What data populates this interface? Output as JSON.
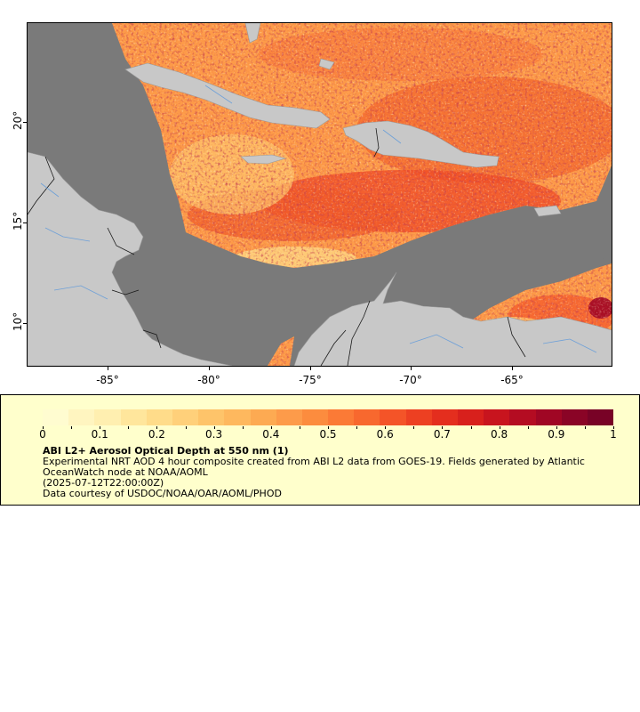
{
  "map": {
    "y_axis_labels": [
      "20°",
      "15°",
      "10°"
    ],
    "x_axis_labels": [
      "-85°",
      "-80°",
      "-75°",
      "-70°",
      "-65°"
    ],
    "land_color": "#c8c8c8",
    "nodata_color": "#7a7a7a",
    "border_color": "#1a1a1a",
    "river_color": "#6ea0d8"
  },
  "legend": {
    "colorbar_ticks": [
      "0",
      "0.1",
      "0.2",
      "0.3",
      "0.4",
      "0.5",
      "0.6",
      "0.7",
      "0.8",
      "0.9",
      "1"
    ],
    "colorbar_colors": [
      "#fffcd0",
      "#fff5c0",
      "#ffefb0",
      "#ffe69c",
      "#ffdc8a",
      "#ffd07a",
      "#fec46a",
      "#feb85e",
      "#fdaa52",
      "#fd9b4a",
      "#fc8c3e",
      "#fb7a36",
      "#f8682e",
      "#f45428",
      "#ed4022",
      "#e42e1e",
      "#d8201c",
      "#c8141e",
      "#b40c22",
      "#a00624",
      "#8a0426",
      "#780226"
    ],
    "title": "ABI L2+ Aerosol Optical Depth at 550 nm (1)",
    "description": "Experimental NRT AOD 4 hour composite created from ABI L2 data from GOES-19. Fields generated by Atlantic OceanWatch node at NOAA/AOML",
    "timestamp": "(2025-07-12T22:00:00Z)",
    "credit": "Data courtesy of USDOC/NOAA/OAR/AOML/PHOD"
  }
}
